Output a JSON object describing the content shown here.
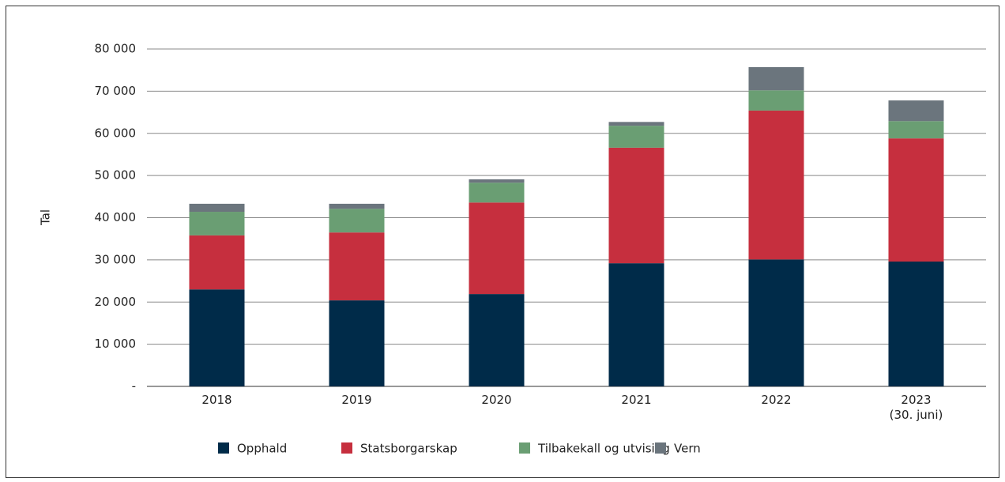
{
  "chart_data": {
    "type": "stacked_bar",
    "y_label": "Tal",
    "categories": [
      "2018",
      "2019",
      "2020",
      "2021",
      "2022",
      "2023\n(30. juni)"
    ],
    "series": [
      {
        "name": "Opphald",
        "color": "#002b49",
        "values": [
          23000,
          20400,
          21900,
          29200,
          30100,
          29600
        ]
      },
      {
        "name": "Statsborgarskap",
        "color": "#c62f3e",
        "values": [
          12800,
          16100,
          21700,
          27400,
          35300,
          29200
        ]
      },
      {
        "name": "Tilbakekall og utvising",
        "color": "#6a9e73",
        "values": [
          5600,
          5600,
          4700,
          5200,
          4800,
          4100
        ]
      },
      {
        "name": "Vern",
        "color": "#6b757d",
        "values": [
          1900,
          1200,
          800,
          900,
          5500,
          4900
        ]
      }
    ],
    "ylim": [
      0,
      80000
    ],
    "yticks": [
      {
        "value": 0,
        "label": "-"
      },
      {
        "value": 10000,
        "label": "10 000"
      },
      {
        "value": 20000,
        "label": "20 000"
      },
      {
        "value": 30000,
        "label": "30 000"
      },
      {
        "value": 40000,
        "label": "40 000"
      },
      {
        "value": 50000,
        "label": "50 000"
      },
      {
        "value": 60000,
        "label": "60 000"
      },
      {
        "value": 70000,
        "label": "70 000"
      },
      {
        "value": 80000,
        "label": "80 000"
      }
    ],
    "grid": true
  }
}
